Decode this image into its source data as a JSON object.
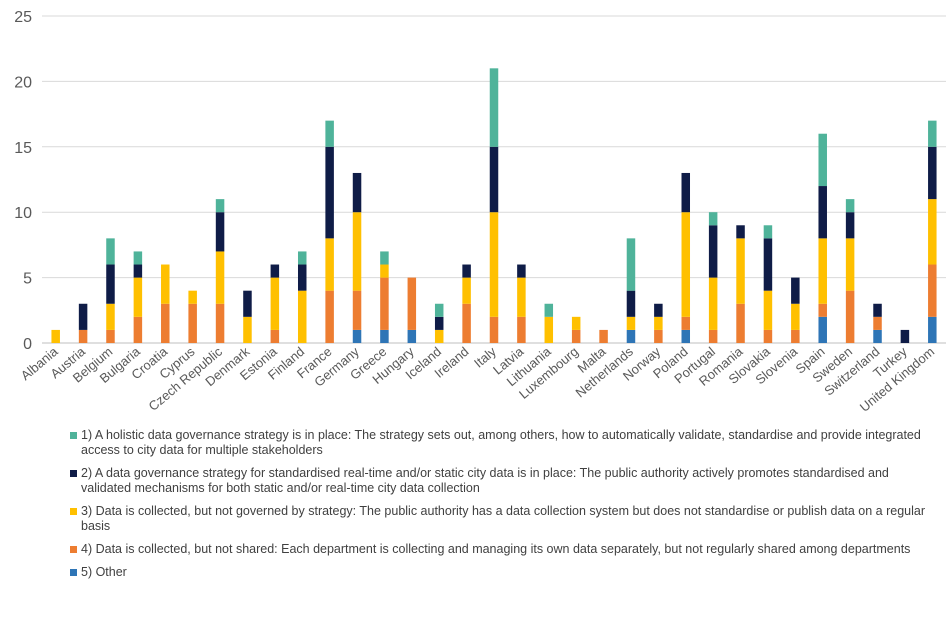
{
  "chart_data": {
    "type": "bar",
    "stacked": true,
    "title": "",
    "xlabel": "",
    "ylabel": "",
    "ylim": [
      0,
      25
    ],
    "yticks": [
      0,
      5,
      10,
      15,
      20,
      25
    ],
    "grid": true,
    "legend_position": "bottom",
    "categories": [
      "Albania",
      "Austria",
      "Belgium",
      "Bulgaria",
      "Croatia",
      "Cyprus",
      "Czech Republic",
      "Denmark",
      "Estonia",
      "Finland",
      "France",
      "Germany",
      "Greece",
      "Hungary",
      "Iceland",
      "Ireland",
      "Italy",
      "Latvia",
      "Lithuania",
      "Luxembourg",
      "Malta",
      "Netherlands",
      "Norway",
      "Poland",
      "Portugal",
      "Romania",
      "Slovakia",
      "Slovenia",
      "Spain",
      "Sweden",
      "Switzerland",
      "Turkey",
      "United Kingdom"
    ],
    "series": [
      {
        "name": "5) Other",
        "color": "#2e75b6",
        "values": [
          0,
          0,
          0,
          0,
          0,
          0,
          0,
          0,
          0,
          0,
          0,
          1,
          1,
          1,
          0,
          0,
          0,
          0,
          0,
          0,
          0,
          1,
          0,
          1,
          0,
          0,
          0,
          0,
          2,
          0,
          1,
          0,
          2
        ]
      },
      {
        "name": "4) Data is collected, but not shared: Each department is collecting and managing its own data separately, but not regularly shared among departments",
        "color": "#ed7d31",
        "values": [
          0,
          1,
          1,
          2,
          3,
          3,
          3,
          0,
          1,
          0,
          4,
          3,
          4,
          4,
          0,
          3,
          2,
          2,
          0,
          1,
          1,
          0,
          1,
          1,
          1,
          3,
          1,
          1,
          1,
          4,
          1,
          0,
          4
        ]
      },
      {
        "name": "3) Data is collected, but not governed by strategy: The public authority has a data collection system but does not standardise or publish data on a regular basis",
        "color": "#ffc000",
        "values": [
          1,
          0,
          2,
          3,
          3,
          1,
          4,
          2,
          4,
          4,
          4,
          6,
          1,
          0,
          1,
          2,
          8,
          3,
          2,
          1,
          0,
          1,
          1,
          8,
          4,
          5,
          3,
          2,
          5,
          4,
          0,
          0,
          5
        ]
      },
      {
        "name": "2) A data governance strategy for standardised real-time and/or static city data is in place: The public authority actively promotes standardised and validated mechanisms for both static and/or real-time city data collection",
        "color": "#0f1c47",
        "values": [
          0,
          2,
          3,
          1,
          0,
          0,
          3,
          2,
          1,
          2,
          7,
          3,
          0,
          0,
          1,
          1,
          5,
          1,
          0,
          0,
          0,
          2,
          1,
          3,
          4,
          1,
          4,
          2,
          4,
          2,
          1,
          1,
          4
        ]
      },
      {
        "name": "1) A holistic data governance strategy is in place: The strategy sets out, among others, how to automatically validate, standardise and provide integrated access to city data for multiple stakeholders",
        "color": "#4fb39a",
        "values": [
          0,
          0,
          2,
          1,
          0,
          0,
          1,
          0,
          0,
          1,
          2,
          0,
          1,
          0,
          1,
          0,
          6,
          0,
          1,
          0,
          0,
          4,
          0,
          0,
          1,
          0,
          1,
          0,
          4,
          1,
          0,
          0,
          2
        ]
      }
    ]
  },
  "legend": [
    {
      "label": "1) A holistic data governance strategy is in place: The strategy sets out, among others, how to automatically validate, standardise and provide integrated access to city data for multiple stakeholders",
      "color": "#4fb39a"
    },
    {
      "label": "2) A data governance strategy for standardised real-time and/or static city data is in place: The public authority actively promotes standardised and validated mechanisms for both static and/or real-time city data collection",
      "color": "#0f1c47"
    },
    {
      "label": "3) Data is collected, but not governed by strategy: The public authority has a data collection system but does not standardise or publish data on a regular basis",
      "color": "#ffc000"
    },
    {
      "label": "4) Data is collected, but not shared: Each department is collecting and managing its own data separately, but not regularly shared among departments",
      "color": "#ed7d31"
    },
    {
      "label": "5) Other",
      "color": "#2e75b6"
    }
  ]
}
